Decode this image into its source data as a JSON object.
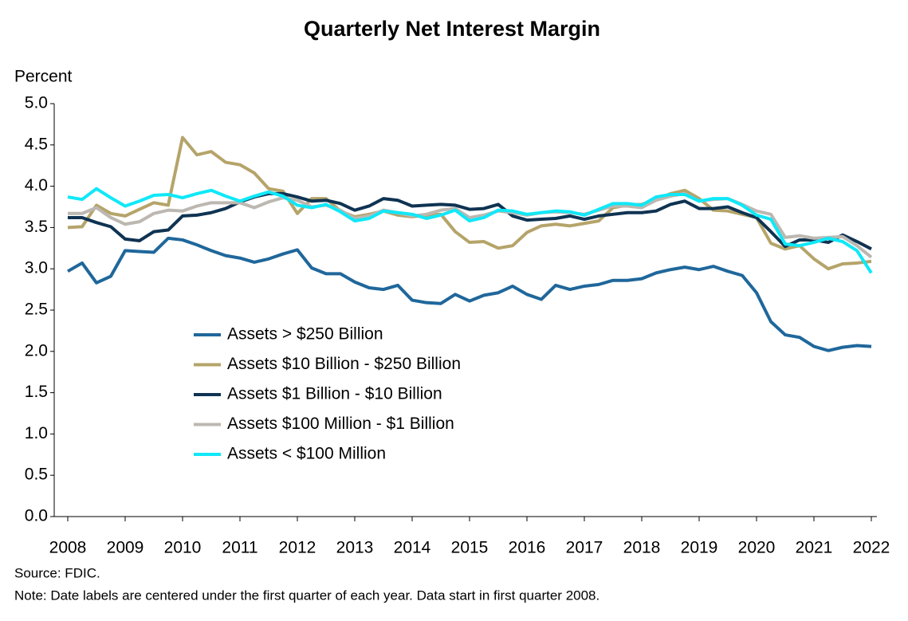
{
  "chart_data": {
    "type": "line",
    "title": "Quarterly Net Interest Margin",
    "y_label": "Percent",
    "source": "Source:  FDIC.",
    "note": "Note:  Date labels are centered under the first quarter of each year. Data start in first quarter 2008.",
    "legend": "center-left",
    "categories": [
      "2008",
      null,
      null,
      null,
      "2009",
      null,
      null,
      null,
      "2010",
      null,
      null,
      null,
      "2011",
      null,
      null,
      null,
      "2012",
      null,
      null,
      null,
      "2013",
      null,
      null,
      null,
      "2014",
      null,
      null,
      null,
      "2015",
      null,
      null,
      null,
      "2016",
      null,
      null,
      null,
      "2017",
      null,
      null,
      null,
      "2018",
      null,
      null,
      null,
      "2019",
      null,
      null,
      null,
      "2020",
      null,
      null,
      null,
      "2021",
      null,
      null,
      null,
      "2022"
    ],
    "ylim": [
      0,
      5
    ],
    "yticks": [
      {
        "value": 0,
        "label": "0.0"
      },
      0.5,
      {
        "value": 1,
        "label": "1.0"
      },
      1.5,
      {
        "value": 2,
        "label": "2.0"
      },
      2.5,
      {
        "value": 3,
        "label": "3.0"
      },
      3.5,
      {
        "value": 4,
        "label": "4.0"
      },
      4.5,
      {
        "value": 5,
        "label": "5.0"
      }
    ],
    "series": [
      {
        "name": "Assets > $250 Billion",
        "color": "#1f679b",
        "values": [
          2.97,
          3.07,
          2.83,
          2.91,
          3.22,
          3.21,
          3.2,
          3.37,
          3.35,
          3.29,
          3.22,
          3.16,
          3.13,
          3.08,
          3.12,
          3.18,
          3.23,
          3.01,
          2.94,
          2.94,
          2.84,
          2.77,
          2.75,
          2.8,
          2.62,
          2.59,
          2.58,
          2.69,
          2.61,
          2.68,
          2.71,
          2.79,
          2.69,
          2.63,
          2.8,
          2.75,
          2.79,
          2.81,
          2.86,
          2.86,
          2.88,
          2.95,
          2.99,
          3.02,
          2.99,
          3.03,
          2.97,
          2.92,
          2.71,
          2.36,
          2.2,
          2.17,
          2.06,
          2.01,
          2.05,
          2.07,
          2.06
        ]
      },
      {
        "name": "Assets  $10 Billion - $250 Billion",
        "color": "#b5a46a",
        "values": [
          3.5,
          3.51,
          3.77,
          3.67,
          3.64,
          3.72,
          3.8,
          3.77,
          4.59,
          4.38,
          4.42,
          4.29,
          4.26,
          4.16,
          3.97,
          3.94,
          3.67,
          3.85,
          3.85,
          3.7,
          3.63,
          3.66,
          3.7,
          3.65,
          3.63,
          3.65,
          3.66,
          3.45,
          3.32,
          3.33,
          3.25,
          3.28,
          3.44,
          3.52,
          3.54,
          3.52,
          3.55,
          3.58,
          3.74,
          3.77,
          3.78,
          3.84,
          3.91,
          3.95,
          3.85,
          3.71,
          3.7,
          3.66,
          3.62,
          3.31,
          3.24,
          3.28,
          3.12,
          3.0,
          3.06,
          3.07,
          3.09
        ]
      },
      {
        "name": "Assets  $1 Billion - $10 Billion",
        "color": "#0f3352",
        "values": [
          3.62,
          3.62,
          3.56,
          3.51,
          3.36,
          3.34,
          3.45,
          3.47,
          3.64,
          3.65,
          3.68,
          3.73,
          3.81,
          3.87,
          3.91,
          3.91,
          3.87,
          3.82,
          3.83,
          3.79,
          3.71,
          3.76,
          3.85,
          3.83,
          3.76,
          3.77,
          3.78,
          3.77,
          3.72,
          3.73,
          3.78,
          3.64,
          3.59,
          3.6,
          3.61,
          3.64,
          3.6,
          3.64,
          3.66,
          3.68,
          3.68,
          3.7,
          3.78,
          3.82,
          3.73,
          3.73,
          3.75,
          3.68,
          3.62,
          3.45,
          3.27,
          3.35,
          3.35,
          3.32,
          3.41,
          3.33,
          3.24
        ]
      },
      {
        "name": "Assets  $100 Million - $1 Billion",
        "color": "#bcb8b1",
        "values": [
          3.67,
          3.67,
          3.74,
          3.62,
          3.54,
          3.57,
          3.67,
          3.71,
          3.7,
          3.76,
          3.8,
          3.8,
          3.8,
          3.74,
          3.81,
          3.86,
          3.83,
          3.75,
          3.77,
          3.71,
          3.61,
          3.64,
          3.71,
          3.68,
          3.64,
          3.66,
          3.71,
          3.73,
          3.62,
          3.65,
          3.7,
          3.68,
          3.65,
          3.68,
          3.69,
          3.68,
          3.66,
          3.71,
          3.76,
          3.76,
          3.74,
          3.83,
          3.88,
          3.91,
          3.82,
          3.84,
          3.85,
          3.78,
          3.7,
          3.66,
          3.38,
          3.4,
          3.37,
          3.38,
          3.39,
          3.28,
          3.14
        ]
      },
      {
        "name": "Assets < $100 Million",
        "color": "#10e8f8",
        "values": [
          3.87,
          3.84,
          3.97,
          3.86,
          3.76,
          3.82,
          3.89,
          3.9,
          3.86,
          3.91,
          3.95,
          3.88,
          3.82,
          3.88,
          3.93,
          3.88,
          3.77,
          3.74,
          3.78,
          3.69,
          3.58,
          3.61,
          3.7,
          3.68,
          3.66,
          3.61,
          3.65,
          3.71,
          3.58,
          3.62,
          3.71,
          3.7,
          3.66,
          3.68,
          3.7,
          3.69,
          3.65,
          3.72,
          3.79,
          3.79,
          3.77,
          3.87,
          3.9,
          3.9,
          3.82,
          3.85,
          3.85,
          3.77,
          3.65,
          3.6,
          3.3,
          3.28,
          3.32,
          3.37,
          3.33,
          3.22,
          2.95
        ]
      }
    ]
  }
}
